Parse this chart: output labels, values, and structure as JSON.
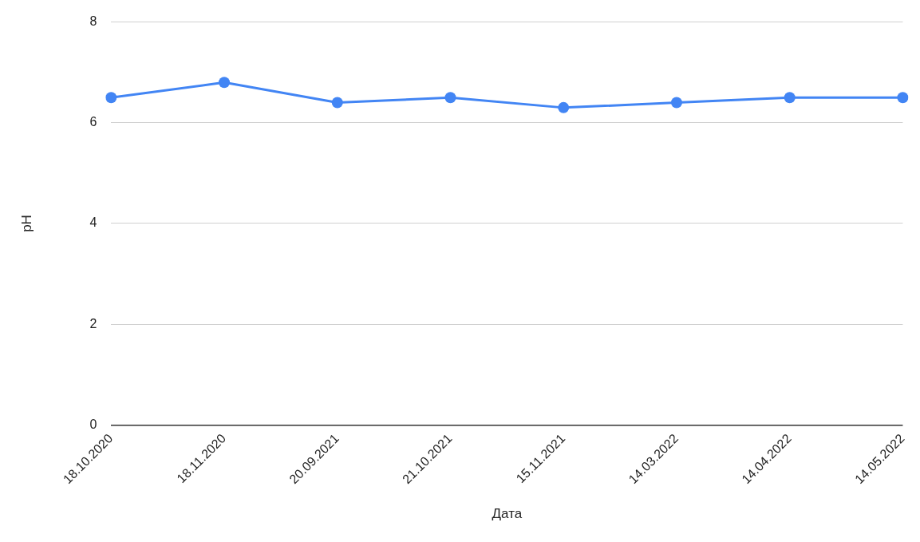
{
  "chart_data": {
    "type": "line",
    "xlabel": "Дата",
    "ylabel": "pH",
    "categories": [
      "18.10.2020",
      "18.11.2020",
      "20.09.2021",
      "21.10.2021",
      "15.11.2021",
      "14.03.2022",
      "14.04.2022",
      "14.05.2022"
    ],
    "series": [
      {
        "color": "#4285f4",
        "values": [
          6.5,
          6.8,
          6.4,
          6.5,
          6.3,
          6.4,
          6.5,
          6.5
        ]
      }
    ],
    "ylim": [
      0,
      8
    ],
    "yticks": [
      0,
      2,
      4,
      6,
      8
    ],
    "grid": "y",
    "legend": false,
    "marker": "circle",
    "line_style": "solid"
  }
}
